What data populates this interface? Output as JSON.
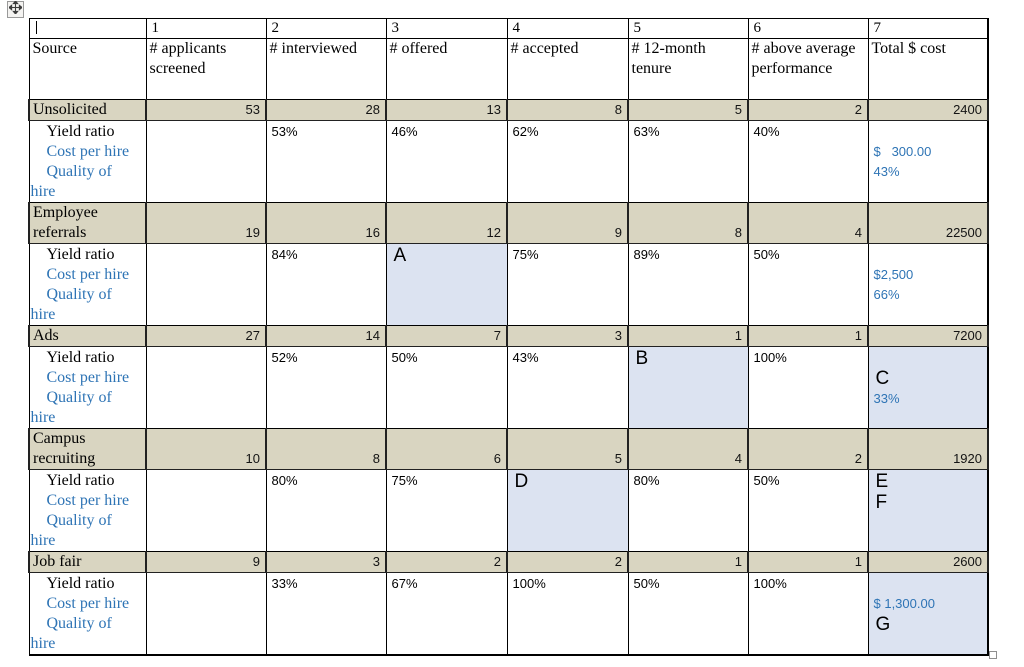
{
  "colors": {
    "tan_row": "#d9d5c1",
    "highlight_cell": "#dce3f1",
    "blue_text": "#2e74b5",
    "count_text": "#141414"
  },
  "icons": {
    "move_handle": "table-move-handle",
    "resize_handle": "table-resize-handle"
  },
  "table": {
    "column_numbers": [
      "",
      "1",
      "2",
      "3",
      "4",
      "5",
      "6",
      "7"
    ],
    "column_headers": [
      "Source",
      "# applicants screened",
      "# interviewed",
      "# offered",
      "# accepted",
      "# 12-month tenure",
      "# above average performance",
      "Total $ cost"
    ],
    "yield_label": [
      {
        "t": "Yield ratio",
        "c": "black",
        "indent": true
      },
      {
        "t": "Cost per hire",
        "c": "blue",
        "indent": true
      },
      {
        "t": "Quality of",
        "c": "blue",
        "indent": true
      },
      {
        "t": "hire",
        "c": "blue",
        "indent": false
      }
    ],
    "sources": [
      {
        "name_lines": [
          "Unsolicited"
        ],
        "counts": [
          "53",
          "28",
          "13",
          "8",
          "5",
          "2",
          "2400"
        ],
        "yield_cells": [
          {
            "lines": []
          },
          {
            "lines": [
              {
                "t": "53%"
              }
            ]
          },
          {
            "lines": [
              {
                "t": "46%"
              }
            ]
          },
          {
            "lines": [
              {
                "t": "62%"
              }
            ]
          },
          {
            "lines": [
              {
                "t": "63%"
              }
            ]
          },
          {
            "lines": [
              {
                "t": "40%"
              }
            ]
          },
          {
            "lines": [
              {
                "t": ""
              },
              {
                "t": "$   300.00",
                "c": "blue"
              },
              {
                "t": "43%",
                "c": "blue"
              }
            ]
          }
        ]
      },
      {
        "name_lines": [
          "Employee",
          "referrals"
        ],
        "counts": [
          "19",
          "16",
          "12",
          "9",
          "8",
          "4",
          "22500"
        ],
        "yield_cells": [
          {
            "lines": []
          },
          {
            "lines": [
              {
                "t": "84%"
              }
            ]
          },
          {
            "highlight": true,
            "lines": [
              {
                "t": "A",
                "big": true
              }
            ]
          },
          {
            "lines": [
              {
                "t": "75%"
              }
            ]
          },
          {
            "lines": [
              {
                "t": "89%"
              }
            ]
          },
          {
            "lines": [
              {
                "t": "50%"
              }
            ]
          },
          {
            "lines": [
              {
                "t": ""
              },
              {
                "t": "$2,500",
                "c": "blue"
              },
              {
                "t": "66%",
                "c": "blue"
              }
            ]
          }
        ]
      },
      {
        "name_lines": [
          "Ads"
        ],
        "counts": [
          "27",
          "14",
          "7",
          "3",
          "1",
          "1",
          "7200"
        ],
        "yield_cells": [
          {
            "lines": []
          },
          {
            "lines": [
              {
                "t": "52%"
              }
            ]
          },
          {
            "lines": [
              {
                "t": "50%"
              }
            ]
          },
          {
            "lines": [
              {
                "t": "43%"
              }
            ]
          },
          {
            "highlight": true,
            "lines": [
              {
                "t": "B",
                "big": true
              }
            ]
          },
          {
            "lines": [
              {
                "t": "100%"
              }
            ]
          },
          {
            "highlight": true,
            "lines": [
              {
                "t": ""
              },
              {
                "t": "C",
                "big": true
              },
              {
                "t": "33%",
                "c": "blue"
              }
            ]
          }
        ]
      },
      {
        "name_lines": [
          "Campus",
          "recruiting"
        ],
        "counts": [
          "10",
          "8",
          "6",
          "5",
          "4",
          "2",
          "1920"
        ],
        "yield_cells": [
          {
            "lines": []
          },
          {
            "lines": [
              {
                "t": "80%"
              }
            ]
          },
          {
            "lines": [
              {
                "t": "75%"
              }
            ]
          },
          {
            "highlight": true,
            "lines": [
              {
                "t": "D",
                "big": true
              }
            ]
          },
          {
            "lines": [
              {
                "t": "80%"
              }
            ]
          },
          {
            "lines": [
              {
                "t": "50%"
              }
            ]
          },
          {
            "highlight": true,
            "lines": [
              {
                "t": "E",
                "big": true
              },
              {
                "t": "F",
                "big": true
              }
            ]
          }
        ]
      },
      {
        "name_lines": [
          "Job fair"
        ],
        "counts": [
          "9",
          "3",
          "2",
          "2",
          "1",
          "1",
          "2600"
        ],
        "yield_cells": [
          {
            "lines": []
          },
          {
            "lines": [
              {
                "t": "33%"
              }
            ]
          },
          {
            "lines": [
              {
                "t": "67%"
              }
            ]
          },
          {
            "lines": [
              {
                "t": "100%"
              }
            ]
          },
          {
            "lines": [
              {
                "t": "50%"
              }
            ]
          },
          {
            "lines": [
              {
                "t": "100%"
              }
            ]
          },
          {
            "highlight": true,
            "lines": [
              {
                "t": ""
              },
              {
                "t": "$ 1,300.00",
                "c": "blue"
              },
              {
                "t": "G",
                "big": true
              }
            ]
          }
        ]
      }
    ]
  }
}
